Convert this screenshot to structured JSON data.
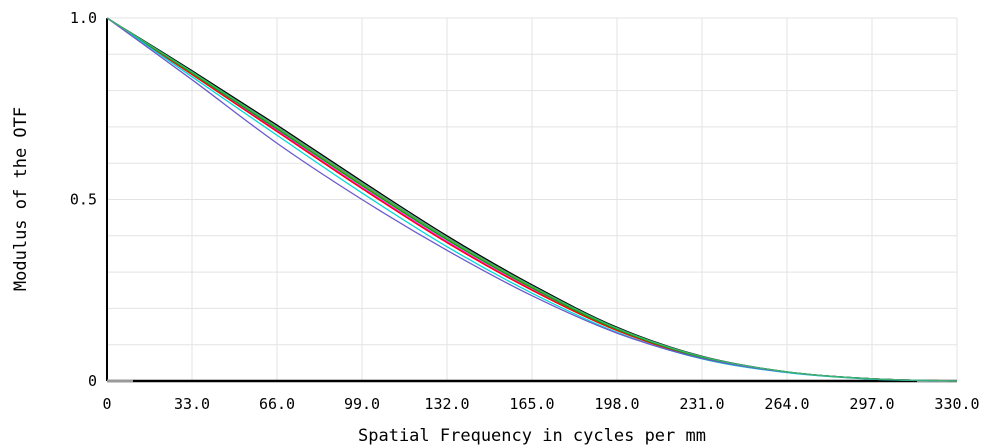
{
  "chart_data": {
    "type": "line",
    "title": "",
    "xlabel": "Spatial Frequency in cycles per mm",
    "ylabel": "Modulus of the OTF",
    "xlim": [
      0,
      330
    ],
    "ylim": [
      0,
      1
    ],
    "x_ticks": [
      0,
      33,
      66,
      99,
      132,
      165,
      198,
      231,
      264,
      297,
      330
    ],
    "x_tick_labels": [
      "0",
      "33.0",
      "66.0",
      "99.0",
      "132.0",
      "165.0",
      "198.0",
      "231.0",
      "264.0",
      "297.0",
      "330.0"
    ],
    "y_ticks": [
      0,
      0.5,
      1.0
    ],
    "y_tick_labels": [
      "0",
      "0.5",
      "1.0"
    ],
    "grid": true,
    "x": [
      0,
      33,
      66,
      99,
      132,
      165,
      198,
      231,
      264,
      297,
      330
    ],
    "series": [
      {
        "color": "#000000",
        "values": [
          1.0,
          0.855,
          0.705,
          0.55,
          0.4,
          0.265,
          0.148,
          0.068,
          0.025,
          0.006,
          0.0
        ]
      },
      {
        "color": "#2e8b57",
        "values": [
          1.0,
          0.852,
          0.7,
          0.545,
          0.395,
          0.262,
          0.146,
          0.067,
          0.025,
          0.006,
          0.0
        ]
      },
      {
        "color": "#d2691e",
        "values": [
          1.0,
          0.85,
          0.697,
          0.541,
          0.392,
          0.259,
          0.144,
          0.066,
          0.024,
          0.006,
          0.0
        ]
      },
      {
        "color": "#ff00ff",
        "values": [
          1.0,
          0.846,
          0.69,
          0.533,
          0.384,
          0.252,
          0.14,
          0.064,
          0.024,
          0.006,
          0.0
        ]
      },
      {
        "color": "#ff0000",
        "values": [
          1.0,
          0.844,
          0.687,
          0.53,
          0.381,
          0.25,
          0.139,
          0.063,
          0.024,
          0.006,
          0.0
        ]
      },
      {
        "color": "#00aa00",
        "values": [
          1.0,
          0.848,
          0.694,
          0.538,
          0.389,
          0.256,
          0.142,
          0.065,
          0.024,
          0.006,
          0.0
        ]
      },
      {
        "color": "#00d7d7",
        "values": [
          1.0,
          0.838,
          0.677,
          0.518,
          0.37,
          0.242,
          0.134,
          0.061,
          0.023,
          0.005,
          0.0
        ]
      },
      {
        "color": "#6a5acd",
        "values": [
          1.0,
          0.83,
          0.655,
          0.5,
          0.36,
          0.235,
          0.132,
          0.062,
          0.024,
          0.006,
          0.0
        ]
      },
      {
        "color": "#3cb371",
        "values": [
          1.0,
          0.851,
          0.699,
          0.544,
          0.394,
          0.261,
          0.145,
          0.067,
          0.025,
          0.006,
          0.0
        ]
      }
    ]
  }
}
